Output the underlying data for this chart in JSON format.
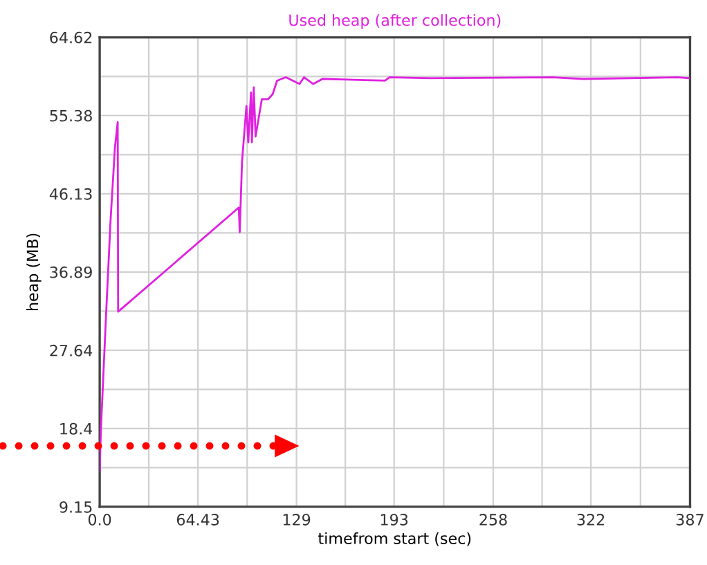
{
  "chart_data": {
    "type": "line",
    "title": "Used heap (after collection)",
    "xlabel": "timefrom start (sec)",
    "ylabel": "heap (MB)",
    "series": [
      {
        "color": "#e020e0",
        "x": [
          0,
          0.8,
          4.2,
          7.1,
          10,
          11.8,
          12.1,
          91.2,
          91.8,
          93.3,
          96.2,
          97.4,
          99.2,
          99.8,
          101,
          102.2,
          106.3,
          110.4,
          113.4,
          116.3,
          122,
          131,
          134,
          140,
          146,
          187,
          190,
          217,
          297,
          317,
          379,
          386
        ],
        "values": [
          13.4,
          18.3,
          31.9,
          42.9,
          51.6,
          54.6,
          32.2,
          44.5,
          41.6,
          49.9,
          56.5,
          52.2,
          58.1,
          52.2,
          58.7,
          52.9,
          57.3,
          57.3,
          57.9,
          59.5,
          59.9,
          59.1,
          59.9,
          59.1,
          59.7,
          59.5,
          59.9,
          59.8,
          59.9,
          59.7,
          59.9,
          59.8
        ]
      }
    ],
    "xlim": [
      0,
      387
    ],
    "ylim": [
      9.15,
      64.62
    ],
    "xticks": [
      {
        "value": 0,
        "label": "0.0"
      },
      {
        "value": 32.2,
        "label": null
      },
      64.43,
      {
        "value": 96.7,
        "label": null
      },
      129,
      {
        "value": 161,
        "label": null
      },
      193,
      {
        "value": 225.5,
        "label": null
      },
      258,
      {
        "value": 290,
        "label": null
      },
      322,
      {
        "value": 354.5,
        "label": null
      },
      387
    ],
    "yticks": [
      9.15,
      {
        "value": 13.78,
        "label": null
      },
      18.4,
      {
        "value": 23.02,
        "label": null
      },
      27.64,
      {
        "value": 32.27,
        "label": null
      },
      36.89,
      {
        "value": 41.51,
        "label": null
      },
      46.13,
      {
        "value": 50.76,
        "label": null
      },
      55.38,
      {
        "value": 60,
        "label": null
      },
      64.62
    ],
    "grid": true,
    "marker": "none",
    "line_style": "solid",
    "legend": false
  }
}
